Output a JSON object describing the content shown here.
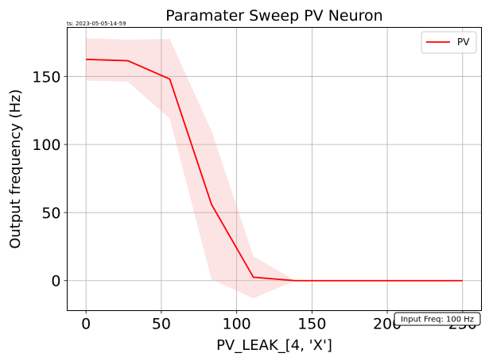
{
  "chart_data": {
    "type": "line",
    "title": "Paramater Sweep PV Neuron",
    "timestamp": "ts: 2023-05-05-14-59",
    "xlabel": "PV_LEAK_[4, 'X']",
    "ylabel": "Output frequency (Hz)",
    "xlim": [
      -12.5,
      262.5
    ],
    "ylim": [
      -22,
      186
    ],
    "xticks": [
      0,
      50,
      100,
      150,
      200,
      250
    ],
    "yticks": [
      0,
      50,
      100,
      150
    ],
    "grid": true,
    "legend_position": "top-right",
    "annotation": "Input Freq: 100 Hz",
    "series": [
      {
        "name": "PV",
        "color": "#ff0000",
        "band_color": "#f4a6a6",
        "x": [
          0,
          27.8,
          55.6,
          83.3,
          111.1,
          138.9,
          166.7,
          194.4,
          222.2,
          250
        ],
        "y": [
          162.5,
          161.5,
          148,
          56,
          2.5,
          0,
          0,
          0,
          0,
          0
        ],
        "lower": [
          147,
          146,
          119,
          1,
          -13,
          0,
          0,
          0,
          0,
          0
        ],
        "upper": [
          178,
          177,
          177.5,
          110,
          18,
          0,
          0,
          0,
          0,
          0
        ]
      }
    ]
  }
}
